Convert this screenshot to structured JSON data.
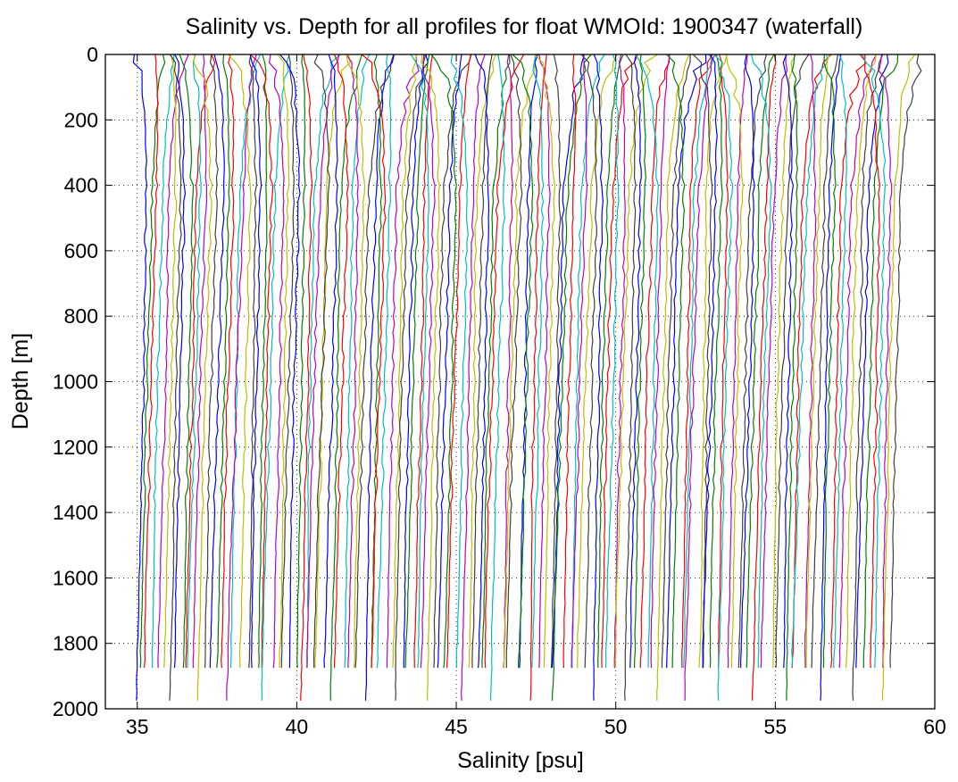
{
  "chart_data": {
    "type": "line",
    "title": "Salinity vs. Depth for all profiles for float WMOId: 1900347 (waterfall)",
    "xlabel": "Salinity [psu]",
    "ylabel": "Depth [m]",
    "xlim": [
      34,
      60
    ],
    "ylim": [
      0,
      2000
    ],
    "y_reversed": true,
    "grid": true,
    "grid_style": "dotted",
    "legend": "none",
    "x_ticks": [
      35,
      40,
      45,
      50,
      55,
      60
    ],
    "y_ticks": [
      0,
      200,
      400,
      600,
      800,
      1000,
      1200,
      1400,
      1600,
      1800,
      2000
    ],
    "color_cycle": [
      "#0000ff",
      "#008000",
      "#ff0000",
      "#00bfbf",
      "#bf00bf",
      "#bfbf00",
      "#404040"
    ],
    "profile_count": 140,
    "offset_per_profile_psu": 0.17,
    "base_salinity_psu": 35.0,
    "notes": "Waterfall plot: each successive profile is offset by a fixed salinity increment; most profiles extend to ~1875 m, some to ~1975 m."
  }
}
